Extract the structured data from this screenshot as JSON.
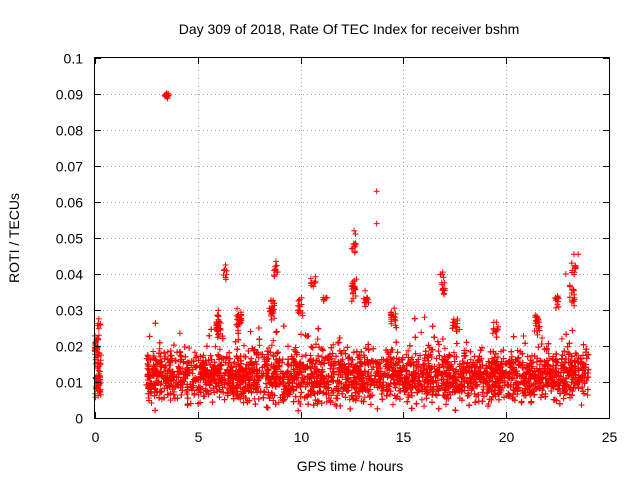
{
  "chart_data": {
    "type": "scatter",
    "title": "Day 309 of 2018, Rate Of TEC Index for receiver bshm",
    "xlabel": "GPS time / hours",
    "ylabel": "ROTI / TECUs",
    "xlim": [
      0,
      25
    ],
    "ylim": [
      0,
      0.1
    ],
    "grid": true,
    "marker": "+",
    "series_color": "#ff0000",
    "x_ticks": [
      0,
      5,
      10,
      15,
      20,
      25
    ],
    "x_tick_labels": [
      "0",
      "5",
      "10",
      "15",
      "20",
      "25"
    ],
    "y_ticks": [
      0,
      0.01,
      0.02,
      0.03,
      0.04,
      0.05,
      0.06,
      0.07,
      0.08,
      0.09,
      0.1
    ],
    "y_tick_labels": [
      "0",
      "0.01",
      "0.02",
      "0.03",
      "0.04",
      "0.05",
      "0.06",
      "0.07",
      "0.08",
      "0.09",
      "0.1"
    ],
    "segments": [
      {
        "x_start": 0.0,
        "x_end": 0.3,
        "y_base": 0.011,
        "spread": 0.006,
        "density": 180
      },
      {
        "x_start": 2.5,
        "x_end": 24.0,
        "y_base": 0.0115,
        "spread": 0.0065,
        "density": 240
      }
    ],
    "clusters": [
      {
        "x": 0.05,
        "y": 0.02,
        "spread": 0.004,
        "count": 25
      },
      {
        "x": 0.15,
        "y": 0.026,
        "spread": 0.002,
        "count": 6
      },
      {
        "x": 3.5,
        "y": 0.0895,
        "spread": 0.0012,
        "count": 12
      },
      {
        "x": 6.0,
        "y": 0.026,
        "spread": 0.004,
        "count": 30
      },
      {
        "x": 6.3,
        "y": 0.04,
        "spread": 0.002,
        "count": 8
      },
      {
        "x": 7.0,
        "y": 0.027,
        "spread": 0.004,
        "count": 30
      },
      {
        "x": 8.8,
        "y": 0.041,
        "spread": 0.002,
        "count": 10
      },
      {
        "x": 8.6,
        "y": 0.03,
        "spread": 0.004,
        "count": 25
      },
      {
        "x": 10.0,
        "y": 0.031,
        "spread": 0.003,
        "count": 15
      },
      {
        "x": 10.6,
        "y": 0.038,
        "spread": 0.002,
        "count": 10
      },
      {
        "x": 11.2,
        "y": 0.033,
        "spread": 0.001,
        "count": 6
      },
      {
        "x": 12.6,
        "y": 0.048,
        "spread": 0.004,
        "count": 10
      },
      {
        "x": 12.6,
        "y": 0.036,
        "spread": 0.004,
        "count": 20
      },
      {
        "x": 13.2,
        "y": 0.033,
        "spread": 0.003,
        "count": 12
      },
      {
        "x": 14.5,
        "y": 0.028,
        "spread": 0.003,
        "count": 15
      },
      {
        "x": 16.9,
        "y": 0.036,
        "spread": 0.002,
        "count": 12
      },
      {
        "x": 16.9,
        "y": 0.04,
        "spread": 0.0015,
        "count": 5
      },
      {
        "x": 17.5,
        "y": 0.026,
        "spread": 0.003,
        "count": 15
      },
      {
        "x": 19.5,
        "y": 0.025,
        "spread": 0.002,
        "count": 10
      },
      {
        "x": 21.5,
        "y": 0.027,
        "spread": 0.004,
        "count": 20
      },
      {
        "x": 22.5,
        "y": 0.033,
        "spread": 0.003,
        "count": 12
      },
      {
        "x": 23.2,
        "y": 0.034,
        "spread": 0.004,
        "count": 15
      },
      {
        "x": 23.3,
        "y": 0.042,
        "spread": 0.003,
        "count": 10
      }
    ],
    "outliers": [
      {
        "x": 13.7,
        "y": 0.063
      },
      {
        "x": 13.7,
        "y": 0.054
      },
      {
        "x": 23.3,
        "y": 0.0455
      },
      {
        "x": 23.5,
        "y": 0.0455
      },
      {
        "x": 22.9,
        "y": 0.04
      },
      {
        "x": 12.6,
        "y": 0.052
      },
      {
        "x": 6.35,
        "y": 0.0425
      },
      {
        "x": 8.8,
        "y": 0.0435
      }
    ]
  }
}
